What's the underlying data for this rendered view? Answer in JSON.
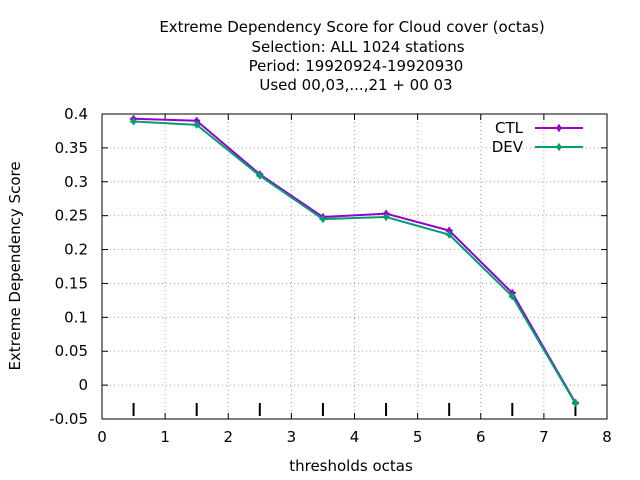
{
  "chart_data": {
    "type": "line",
    "title_lines": [
      "Extreme Dependency Score  for Cloud cover (octas)",
      "Selection: ALL   1024 stations",
      "Period: 19920924-19920930",
      "Used  00,03,...,21  + 00 03"
    ],
    "xlabel": "thresholds octas",
    "ylabel": "Extreme Dependency Score",
    "xlim": [
      0,
      8
    ],
    "ylim": [
      -0.05,
      0.4
    ],
    "xticks": [
      0,
      1,
      2,
      3,
      4,
      5,
      6,
      7,
      8
    ],
    "xtick_labels": [
      "0",
      "1",
      "2",
      "3",
      "4",
      "5",
      "6",
      "7",
      "8"
    ],
    "yticks": [
      -0.05,
      0,
      0.05,
      0.1,
      0.15,
      0.2,
      0.25,
      0.3,
      0.35,
      0.4
    ],
    "ytick_labels": [
      "-0.05",
      "0",
      "0.05",
      "0.1",
      "0.15",
      "0.2",
      "0.25",
      "0.3",
      "0.35",
      "0.4"
    ],
    "grid": true,
    "legend_position": "top-right",
    "x": [
      0.5,
      1.5,
      2.5,
      3.5,
      4.5,
      5.5,
      6.5,
      7.5
    ],
    "series": [
      {
        "name": "CTL",
        "color": "#9400d3",
        "values": [
          0.393,
          0.39,
          0.311,
          0.248,
          0.253,
          0.228,
          0.136,
          -0.026
        ]
      },
      {
        "name": "DEV",
        "color": "#009e73",
        "values": [
          0.389,
          0.384,
          0.309,
          0.245,
          0.248,
          0.222,
          0.131,
          -0.027
        ]
      }
    ],
    "threshold_marks": [
      0.5,
      1.5,
      2.5,
      3.5,
      4.5,
      5.5,
      6.5,
      7.5
    ]
  }
}
